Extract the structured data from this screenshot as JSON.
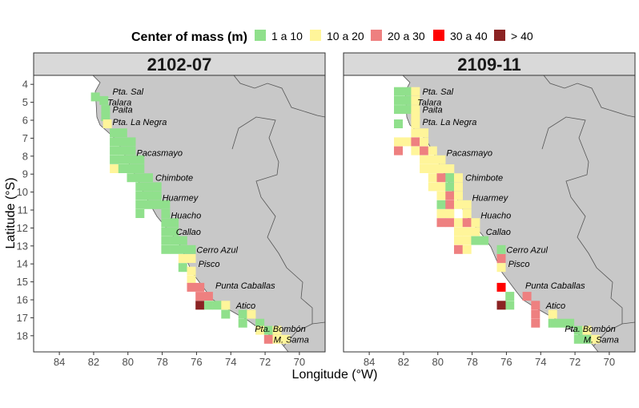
{
  "legend": {
    "title": "Center of mass (m)",
    "classes": [
      {
        "label": "1 a 10",
        "color": "#90E08C"
      },
      {
        "label": "10 a 20",
        "color": "#FFF59A"
      },
      {
        "label": "20 a 30",
        "color": "#EE8080"
      },
      {
        "label": "30 a 40",
        "color": "#FF0000"
      },
      {
        "label": "> 40",
        "color": "#8B2323"
      }
    ]
  },
  "axes": {
    "xlabel": "Longitude (°W)",
    "ylabel": "Latitude (°S)",
    "xticks": [
      "84",
      "82",
      "80",
      "78",
      "76",
      "74",
      "72",
      "70"
    ],
    "yticks": [
      "4",
      "5",
      "6",
      "7",
      "8",
      "9",
      "10",
      "11",
      "12",
      "13",
      "14",
      "15",
      "16",
      "17",
      "18"
    ]
  },
  "places": [
    "Pta. Sal",
    "Talara",
    "Paita",
    "Pta. La Negra",
    "Pacasmayo",
    "Chimbote",
    "Huarmey",
    "Huacho",
    "Callao",
    "Cerro Azul",
    "Pisco",
    "Punta Caballas",
    "Atico",
    "Pta. Bombón",
    "M. Sama"
  ],
  "chart_data": [
    {
      "type": "heatmap",
      "title": "2102-07",
      "xlim": [
        85.5,
        68.5
      ],
      "ylim": [
        18.9,
        3.5
      ],
      "cells": [
        {
          "lon": 81.9,
          "lat": 4.7,
          "c": 1
        },
        {
          "lon": 81.4,
          "lat": 4.9,
          "c": 1
        },
        {
          "lon": 81.3,
          "lat": 5.4,
          "c": 1
        },
        {
          "lon": 81.3,
          "lat": 5.8,
          "c": 1
        },
        {
          "lon": 81.2,
          "lat": 6.2,
          "c": 2
        },
        {
          "lon": 80.8,
          "lat": 6.7,
          "c": 1
        },
        {
          "lon": 80.3,
          "lat": 6.7,
          "c": 1
        },
        {
          "lon": 80.8,
          "lat": 7.2,
          "c": 1
        },
        {
          "lon": 80.3,
          "lat": 7.2,
          "c": 1
        },
        {
          "lon": 79.8,
          "lat": 7.2,
          "c": 1
        },
        {
          "lon": 80.8,
          "lat": 7.7,
          "c": 1
        },
        {
          "lon": 80.3,
          "lat": 7.7,
          "c": 1
        },
        {
          "lon": 79.8,
          "lat": 7.7,
          "c": 1
        },
        {
          "lon": 80.8,
          "lat": 8.2,
          "c": 1
        },
        {
          "lon": 80.3,
          "lat": 8.2,
          "c": 1
        },
        {
          "lon": 79.8,
          "lat": 8.2,
          "c": 1
        },
        {
          "lon": 79.3,
          "lat": 8.2,
          "c": 1
        },
        {
          "lon": 80.8,
          "lat": 8.7,
          "c": 2
        },
        {
          "lon": 80.3,
          "lat": 8.7,
          "c": 1
        },
        {
          "lon": 79.8,
          "lat": 8.7,
          "c": 1
        },
        {
          "lon": 79.3,
          "lat": 8.7,
          "c": 1
        },
        {
          "lon": 79.8,
          "lat": 9.2,
          "c": 1
        },
        {
          "lon": 79.3,
          "lat": 9.2,
          "c": 1
        },
        {
          "lon": 78.8,
          "lat": 9.2,
          "c": 1
        },
        {
          "lon": 79.3,
          "lat": 9.7,
          "c": 1
        },
        {
          "lon": 78.8,
          "lat": 9.7,
          "c": 1
        },
        {
          "lon": 78.3,
          "lat": 9.7,
          "c": 1
        },
        {
          "lon": 79.3,
          "lat": 10.2,
          "c": 1
        },
        {
          "lon": 78.8,
          "lat": 10.2,
          "c": 1
        },
        {
          "lon": 78.3,
          "lat": 10.2,
          "c": 1
        },
        {
          "lon": 79.3,
          "lat": 10.7,
          "c": 1
        },
        {
          "lon": 78.8,
          "lat": 10.7,
          "c": 1
        },
        {
          "lon": 78.3,
          "lat": 10.7,
          "c": 1
        },
        {
          "lon": 77.8,
          "lat": 10.7,
          "c": 1
        },
        {
          "lon": 79.3,
          "lat": 11.2,
          "c": 1
        },
        {
          "lon": 77.8,
          "lat": 11.2,
          "c": 1
        },
        {
          "lon": 77.8,
          "lat": 11.7,
          "c": 1
        },
        {
          "lon": 77.3,
          "lat": 11.7,
          "c": 1
        },
        {
          "lon": 77.8,
          "lat": 12.2,
          "c": 1
        },
        {
          "lon": 77.3,
          "lat": 12.2,
          "c": 1
        },
        {
          "lon": 77.8,
          "lat": 12.7,
          "c": 1
        },
        {
          "lon": 77.3,
          "lat": 12.7,
          "c": 1
        },
        {
          "lon": 76.8,
          "lat": 12.7,
          "c": 1
        },
        {
          "lon": 77.8,
          "lat": 13.2,
          "c": 1
        },
        {
          "lon": 77.3,
          "lat": 13.2,
          "c": 1
        },
        {
          "lon": 76.8,
          "lat": 13.2,
          "c": 1
        },
        {
          "lon": 76.3,
          "lat": 13.2,
          "c": 1
        },
        {
          "lon": 76.8,
          "lat": 13.7,
          "c": 2
        },
        {
          "lon": 76.3,
          "lat": 13.7,
          "c": 2
        },
        {
          "lon": 76.8,
          "lat": 14.2,
          "c": 1
        },
        {
          "lon": 76.3,
          "lat": 14.4,
          "c": 2
        },
        {
          "lon": 76.3,
          "lat": 14.9,
          "c": 2
        },
        {
          "lon": 76.3,
          "lat": 15.3,
          "c": 3
        },
        {
          "lon": 75.8,
          "lat": 15.3,
          "c": 3
        },
        {
          "lon": 75.8,
          "lat": 15.8,
          "c": 3
        },
        {
          "lon": 75.3,
          "lat": 15.8,
          "c": 3
        },
        {
          "lon": 75.8,
          "lat": 16.3,
          "c": 5
        },
        {
          "lon": 75.3,
          "lat": 16.3,
          "c": 1
        },
        {
          "lon": 74.8,
          "lat": 16.3,
          "c": 1
        },
        {
          "lon": 74.3,
          "lat": 16.3,
          "c": 2
        },
        {
          "lon": 74.3,
          "lat": 16.8,
          "c": 1
        },
        {
          "lon": 73.3,
          "lat": 16.8,
          "c": 1
        },
        {
          "lon": 72.8,
          "lat": 16.8,
          "c": 2
        },
        {
          "lon": 73.3,
          "lat": 17.3,
          "c": 1
        },
        {
          "lon": 72.3,
          "lat": 17.3,
          "c": 1
        },
        {
          "lon": 72.3,
          "lat": 17.7,
          "c": 2
        },
        {
          "lon": 71.8,
          "lat": 17.7,
          "c": 1
        },
        {
          "lon": 71.3,
          "lat": 17.7,
          "c": 2
        },
        {
          "lon": 71.8,
          "lat": 18.2,
          "c": 3
        },
        {
          "lon": 71.3,
          "lat": 18.2,
          "c": 2
        },
        {
          "lon": 70.8,
          "lat": 18.2,
          "c": 2
        }
      ]
    },
    {
      "type": "heatmap",
      "title": "2109-11",
      "xlim": [
        85.5,
        68.5
      ],
      "ylim": [
        18.9,
        3.5
      ],
      "cells": [
        {
          "lon": 82.3,
          "lat": 4.4,
          "c": 1
        },
        {
          "lon": 81.8,
          "lat": 4.4,
          "c": 1
        },
        {
          "lon": 81.3,
          "lat": 4.4,
          "c": 2
        },
        {
          "lon": 82.3,
          "lat": 4.9,
          "c": 1
        },
        {
          "lon": 81.8,
          "lat": 4.9,
          "c": 1
        },
        {
          "lon": 81.3,
          "lat": 4.9,
          "c": 2
        },
        {
          "lon": 82.3,
          "lat": 5.4,
          "c": 1
        },
        {
          "lon": 81.8,
          "lat": 5.4,
          "c": 1
        },
        {
          "lon": 81.3,
          "lat": 5.4,
          "c": 2
        },
        {
          "lon": 81.3,
          "lat": 5.8,
          "c": 2
        },
        {
          "lon": 82.3,
          "lat": 6.2,
          "c": 1
        },
        {
          "lon": 81.3,
          "lat": 6.2,
          "c": 2
        },
        {
          "lon": 81.3,
          "lat": 6.7,
          "c": 2
        },
        {
          "lon": 80.8,
          "lat": 6.7,
          "c": 2
        },
        {
          "lon": 82.3,
          "lat": 7.2,
          "c": 2
        },
        {
          "lon": 81.8,
          "lat": 7.2,
          "c": 2
        },
        {
          "lon": 81.3,
          "lat": 7.2,
          "c": 3
        },
        {
          "lon": 80.8,
          "lat": 7.2,
          "c": 2
        },
        {
          "lon": 82.3,
          "lat": 7.7,
          "c": 3
        },
        {
          "lon": 81.3,
          "lat": 7.7,
          "c": 2
        },
        {
          "lon": 80.8,
          "lat": 7.7,
          "c": 3
        },
        {
          "lon": 80.3,
          "lat": 7.7,
          "c": 2
        },
        {
          "lon": 80.8,
          "lat": 8.2,
          "c": 2
        },
        {
          "lon": 80.3,
          "lat": 8.2,
          "c": 2
        },
        {
          "lon": 79.8,
          "lat": 8.2,
          "c": 2
        },
        {
          "lon": 80.8,
          "lat": 8.7,
          "c": 2
        },
        {
          "lon": 80.3,
          "lat": 8.7,
          "c": 2
        },
        {
          "lon": 79.8,
          "lat": 8.7,
          "c": 2
        },
        {
          "lon": 79.3,
          "lat": 8.7,
          "c": 2
        },
        {
          "lon": 80.3,
          "lat": 9.2,
          "c": 2
        },
        {
          "lon": 79.8,
          "lat": 9.2,
          "c": 3
        },
        {
          "lon": 79.3,
          "lat": 9.2,
          "c": 1
        },
        {
          "lon": 78.8,
          "lat": 9.2,
          "c": 2
        },
        {
          "lon": 80.3,
          "lat": 9.7,
          "c": 2
        },
        {
          "lon": 79.8,
          "lat": 9.7,
          "c": 2
        },
        {
          "lon": 79.3,
          "lat": 9.7,
          "c": 1
        },
        {
          "lon": 78.8,
          "lat": 9.7,
          "c": 2
        },
        {
          "lon": 79.8,
          "lat": 10.2,
          "c": 2
        },
        {
          "lon": 79.3,
          "lat": 10.2,
          "c": 3
        },
        {
          "lon": 78.8,
          "lat": 10.2,
          "c": 2
        },
        {
          "lon": 79.8,
          "lat": 10.7,
          "c": 1
        },
        {
          "lon": 79.3,
          "lat": 10.7,
          "c": 3
        },
        {
          "lon": 78.8,
          "lat": 10.7,
          "c": 2
        },
        {
          "lon": 78.3,
          "lat": 10.7,
          "c": 2
        },
        {
          "lon": 79.8,
          "lat": 11.2,
          "c": 2
        },
        {
          "lon": 79.3,
          "lat": 11.2,
          "c": 2
        },
        {
          "lon": 78.3,
          "lat": 11.2,
          "c": 2
        },
        {
          "lon": 79.8,
          "lat": 11.7,
          "c": 3
        },
        {
          "lon": 79.3,
          "lat": 11.7,
          "c": 3
        },
        {
          "lon": 78.8,
          "lat": 11.7,
          "c": 2
        },
        {
          "lon": 78.3,
          "lat": 11.7,
          "c": 3
        },
        {
          "lon": 77.8,
          "lat": 11.7,
          "c": 2
        },
        {
          "lon": 78.8,
          "lat": 12.2,
          "c": 2
        },
        {
          "lon": 78.3,
          "lat": 12.2,
          "c": 2
        },
        {
          "lon": 77.8,
          "lat": 12.2,
          "c": 2
        },
        {
          "lon": 78.8,
          "lat": 12.7,
          "c": 2
        },
        {
          "lon": 78.3,
          "lat": 12.7,
          "c": 2
        },
        {
          "lon": 77.8,
          "lat": 12.7,
          "c": 1
        },
        {
          "lon": 77.3,
          "lat": 12.7,
          "c": 1
        },
        {
          "lon": 78.8,
          "lat": 13.2,
          "c": 3
        },
        {
          "lon": 78.3,
          "lat": 13.2,
          "c": 2
        },
        {
          "lon": 76.3,
          "lat": 13.2,
          "c": 1
        },
        {
          "lon": 76.3,
          "lat": 13.7,
          "c": 3
        },
        {
          "lon": 76.3,
          "lat": 14.2,
          "c": 2
        },
        {
          "lon": 76.3,
          "lat": 15.3,
          "c": 4
        },
        {
          "lon": 75.8,
          "lat": 15.8,
          "c": 1
        },
        {
          "lon": 74.8,
          "lat": 15.8,
          "c": 3
        },
        {
          "lon": 75.8,
          "lat": 16.3,
          "c": 1
        },
        {
          "lon": 74.3,
          "lat": 16.3,
          "c": 3
        },
        {
          "lon": 76.3,
          "lat": 16.3,
          "c": 5
        },
        {
          "lon": 74.3,
          "lat": 16.8,
          "c": 3
        },
        {
          "lon": 73.3,
          "lat": 16.8,
          "c": 2
        },
        {
          "lon": 74.3,
          "lat": 17.3,
          "c": 3
        },
        {
          "lon": 73.3,
          "lat": 17.3,
          "c": 1
        },
        {
          "lon": 72.8,
          "lat": 17.3,
          "c": 1
        },
        {
          "lon": 72.3,
          "lat": 17.3,
          "c": 1
        },
        {
          "lon": 71.8,
          "lat": 17.7,
          "c": 1
        },
        {
          "lon": 71.3,
          "lat": 17.7,
          "c": 2
        },
        {
          "lon": 71.8,
          "lat": 18.2,
          "c": 1
        },
        {
          "lon": 71.3,
          "lat": 18.2,
          "c": 1
        },
        {
          "lon": 70.8,
          "lat": 18.2,
          "c": 2
        }
      ]
    }
  ]
}
